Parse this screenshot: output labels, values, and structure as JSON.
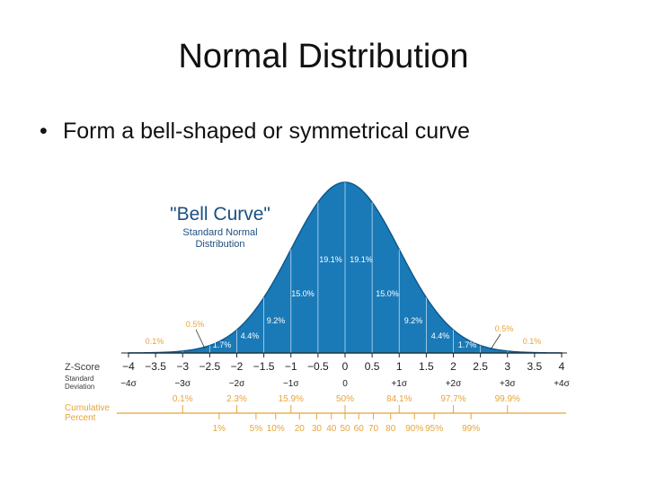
{
  "slide": {
    "title": "Normal Distribution",
    "bullet": "Form a bell-shaped or symmetrical curve",
    "bullet_symbol": "•"
  },
  "chart_data": {
    "type": "area",
    "inset_title": "\"Bell Curve\"",
    "inset_subtitle": [
      "Standard Normal",
      "Distribution"
    ],
    "xlim": [
      -4,
      4
    ],
    "curve_fill": "#1a7ab8",
    "curve_edge": "#0f5a8e",
    "label_color": "#e8a43a",
    "band_percents": [
      {
        "from": -4,
        "to": -3,
        "label": "0.1%"
      },
      {
        "from": -3,
        "to": -2.5,
        "label": "0.5%"
      },
      {
        "from": -2.5,
        "to": -2,
        "label": "1.7%"
      },
      {
        "from": -2,
        "to": -1.5,
        "label": "4.4%"
      },
      {
        "from": -1.5,
        "to": -1,
        "label": "9.2%"
      },
      {
        "from": -1,
        "to": -0.5,
        "label": "15.0%"
      },
      {
        "from": -0.5,
        "to": 0,
        "label": "19.1%"
      },
      {
        "from": 0,
        "to": 0.5,
        "label": "19.1%"
      },
      {
        "from": 0.5,
        "to": 1,
        "label": "15.0%"
      },
      {
        "from": 1,
        "to": 1.5,
        "label": "9.2%"
      },
      {
        "from": 1.5,
        "to": 2,
        "label": "4.4%"
      },
      {
        "from": 2,
        "to": 2.5,
        "label": "1.7%"
      },
      {
        "from": 2.5,
        "to": 3,
        "label": "0.5%"
      },
      {
        "from": 3,
        "to": 4,
        "label": "0.1%"
      }
    ],
    "z_score": {
      "label": "Z-Score",
      "ticks": [
        {
          "z": -4,
          "label": "−4"
        },
        {
          "z": -3.5,
          "label": "−3.5"
        },
        {
          "z": -3,
          "label": "−3"
        },
        {
          "z": -2.5,
          "label": "−2.5"
        },
        {
          "z": -2,
          "label": "−2"
        },
        {
          "z": -1.5,
          "label": "−1.5"
        },
        {
          "z": -1,
          "label": "−1"
        },
        {
          "z": -0.5,
          "label": "−0.5"
        },
        {
          "z": 0,
          "label": "0"
        },
        {
          "z": 0.5,
          "label": "0.5"
        },
        {
          "z": 1,
          "label": "1"
        },
        {
          "z": 1.5,
          "label": "1.5"
        },
        {
          "z": 2,
          "label": "2"
        },
        {
          "z": 2.5,
          "label": "2.5"
        },
        {
          "z": 3,
          "label": "3"
        },
        {
          "z": 3.5,
          "label": "3.5"
        },
        {
          "z": 4,
          "label": "4"
        }
      ]
    },
    "std_dev": {
      "label": [
        "Standard",
        "Deviation"
      ],
      "ticks": [
        {
          "z": -4,
          "label": "−4σ"
        },
        {
          "z": -3,
          "label": "−3σ"
        },
        {
          "z": -2,
          "label": "−2σ"
        },
        {
          "z": -1,
          "label": "−1σ"
        },
        {
          "z": 0,
          "label": "0"
        },
        {
          "z": 1,
          "label": "+1σ"
        },
        {
          "z": 2,
          "label": "+2σ"
        },
        {
          "z": 3,
          "label": "+3σ"
        },
        {
          "z": 4,
          "label": "+4σ"
        }
      ]
    },
    "cumulative": {
      "label": [
        "Cumulative",
        "Percent"
      ],
      "upper": [
        {
          "z": -3,
          "label": "0.1%"
        },
        {
          "z": -2,
          "label": "2.3%"
        },
        {
          "z": -1,
          "label": "15.9%"
        },
        {
          "z": 0,
          "label": "50%"
        },
        {
          "z": 1,
          "label": "84.1%"
        },
        {
          "z": 2,
          "label": "97.7%"
        },
        {
          "z": 3,
          "label": "99.9%"
        }
      ],
      "lower": [
        {
          "z": -2.326,
          "label": "1%"
        },
        {
          "z": -1.645,
          "label": "5%"
        },
        {
          "z": -1.282,
          "label": "10%"
        },
        {
          "z": -0.842,
          "label": "20"
        },
        {
          "z": -0.524,
          "label": "30"
        },
        {
          "z": -0.253,
          "label": "40"
        },
        {
          "z": 0,
          "label": "50"
        },
        {
          "z": 0.253,
          "label": "60"
        },
        {
          "z": 0.524,
          "label": "70"
        },
        {
          "z": 0.842,
          "label": "80"
        },
        {
          "z": 1.282,
          "label": "90%"
        },
        {
          "z": 1.645,
          "label": "95%"
        },
        {
          "z": 2.326,
          "label": "99%"
        }
      ]
    }
  }
}
